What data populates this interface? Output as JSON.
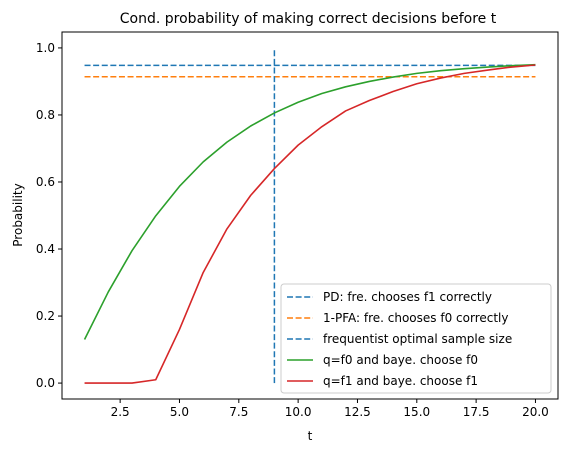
{
  "chart_data": {
    "type": "line",
    "title": "Cond. probability of making correct decisions before t",
    "xlabel": "t",
    "ylabel": "Probability",
    "xlim": [
      0.05,
      20.95
    ],
    "ylim": [
      -0.0475,
      1.0475
    ],
    "grid": false,
    "legend_position": "lower-right",
    "x_ticks": [
      2.5,
      5.0,
      7.5,
      10.0,
      12.5,
      15.0,
      17.5,
      20.0
    ],
    "x_tick_labels": [
      "2.5",
      "5.0",
      "7.5",
      "10.0",
      "12.5",
      "15.0",
      "17.5",
      "20.0"
    ],
    "y_ticks": [
      0.0,
      0.2,
      0.4,
      0.6,
      0.8,
      1.0
    ],
    "y_tick_labels": [
      "0.0",
      "0.2",
      "0.4",
      "0.6",
      "0.8",
      "1.0"
    ],
    "hlines": [
      {
        "name": "PD: fre. chooses f1 correctly",
        "y": 0.948,
        "xmin": 1,
        "xmax": 20,
        "style": "dashed",
        "color": "#1f77b4"
      },
      {
        "name": "1-PFA: fre. chooses f0 correctly",
        "y": 0.914,
        "xmin": 1,
        "xmax": 20,
        "style": "dashed",
        "color": "#ff7f0e"
      }
    ],
    "vlines": [
      {
        "name": "frequentist optimal sample size",
        "x": 9,
        "ymin": 0,
        "ymax": 1,
        "style": "dashed",
        "color": "#1f77b4"
      }
    ],
    "x": [
      1,
      2,
      3,
      4,
      5,
      6,
      7,
      8,
      9,
      10,
      11,
      12,
      13,
      14,
      15,
      16,
      17,
      18,
      19,
      20
    ],
    "series": [
      {
        "name": "q=f0 and baye. choose f0",
        "color": "#2ca02c",
        "style": "solid",
        "values": [
          0.13,
          0.272,
          0.395,
          0.499,
          0.587,
          0.66,
          0.719,
          0.767,
          0.806,
          0.838,
          0.864,
          0.884,
          0.9,
          0.913,
          0.924,
          0.932,
          0.938,
          0.943,
          0.947,
          0.95
        ]
      },
      {
        "name": "q=f1 and baye. choose f1",
        "color": "#d62728",
        "style": "solid",
        "values": [
          0.0,
          0.0,
          0.0,
          0.01,
          0.16,
          0.33,
          0.46,
          0.56,
          0.64,
          0.71,
          0.765,
          0.812,
          0.843,
          0.87,
          0.893,
          0.91,
          0.924,
          0.934,
          0.943,
          0.949
        ]
      }
    ],
    "legend": [
      {
        "label": "PD: fre. chooses f1 correctly",
        "color": "#1f77b4",
        "style": "dashed"
      },
      {
        "label": "1-PFA: fre. chooses f0 correctly",
        "color": "#ff7f0e",
        "style": "dashed"
      },
      {
        "label": "frequentist optimal sample size",
        "color": "#1f77b4",
        "style": "dashed"
      },
      {
        "label": "q=f0 and baye. choose f0",
        "color": "#2ca02c",
        "style": "solid"
      },
      {
        "label": "q=f1 and baye. choose f1",
        "color": "#d62728",
        "style": "solid"
      }
    ]
  }
}
